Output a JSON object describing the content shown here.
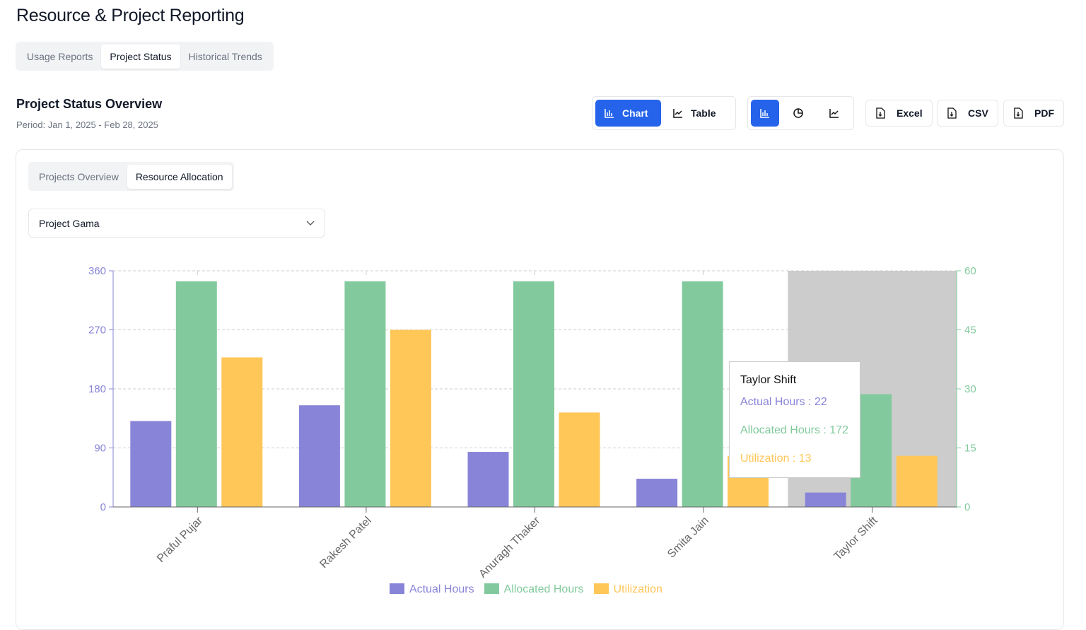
{
  "header": {
    "title": "Resource & Project Reporting",
    "tabs": [
      "Usage Reports",
      "Project Status",
      "Historical Trends"
    ],
    "active_tab": "Project Status"
  },
  "section": {
    "title": "Project Status Overview",
    "period": "Period: Jan 1, 2025 - Feb 28, 2025"
  },
  "view_toggle": {
    "chart": "Chart",
    "table": "Table"
  },
  "export": {
    "excel": "Excel",
    "csv": "CSV",
    "pdf": "PDF"
  },
  "subtabs": [
    "Projects Overview",
    "Resource Allocation"
  ],
  "project_select": {
    "value": "Project Gama"
  },
  "colors": {
    "actual": "#8884d8",
    "allocated": "#82ca9d",
    "utilization": "#ffc658",
    "accent": "#2563eb"
  },
  "tooltip": {
    "name": "Taylor Shift",
    "actual": "Actual Hours : 22",
    "allocated": "Allocated Hours : 172",
    "utilization": "Utilization : 13"
  },
  "chart_data": {
    "type": "bar",
    "categories": [
      "Praful Pujar",
      "Rakesh Patel",
      "Anuragh Thaker",
      "Smita Jain",
      "Taylor Shift"
    ],
    "series": [
      {
        "name": "Actual Hours",
        "axis": "left",
        "values": [
          131,
          155,
          84,
          43,
          22
        ]
      },
      {
        "name": "Allocated Hours",
        "axis": "left",
        "values": [
          344,
          344,
          344,
          344,
          172
        ]
      },
      {
        "name": "Utilization",
        "axis": "right",
        "values": [
          38,
          45,
          24,
          13,
          13
        ]
      }
    ],
    "left_axis": {
      "ylim": [
        0,
        360
      ],
      "ticks": [
        "0",
        "90",
        "180",
        "270",
        "360"
      ]
    },
    "right_axis": {
      "ylim": [
        0,
        60
      ],
      "ticks": [
        "0",
        "15",
        "30",
        "45",
        "60"
      ]
    },
    "grid": true,
    "legend": "bottom",
    "highlighted": "Taylor Shift"
  }
}
